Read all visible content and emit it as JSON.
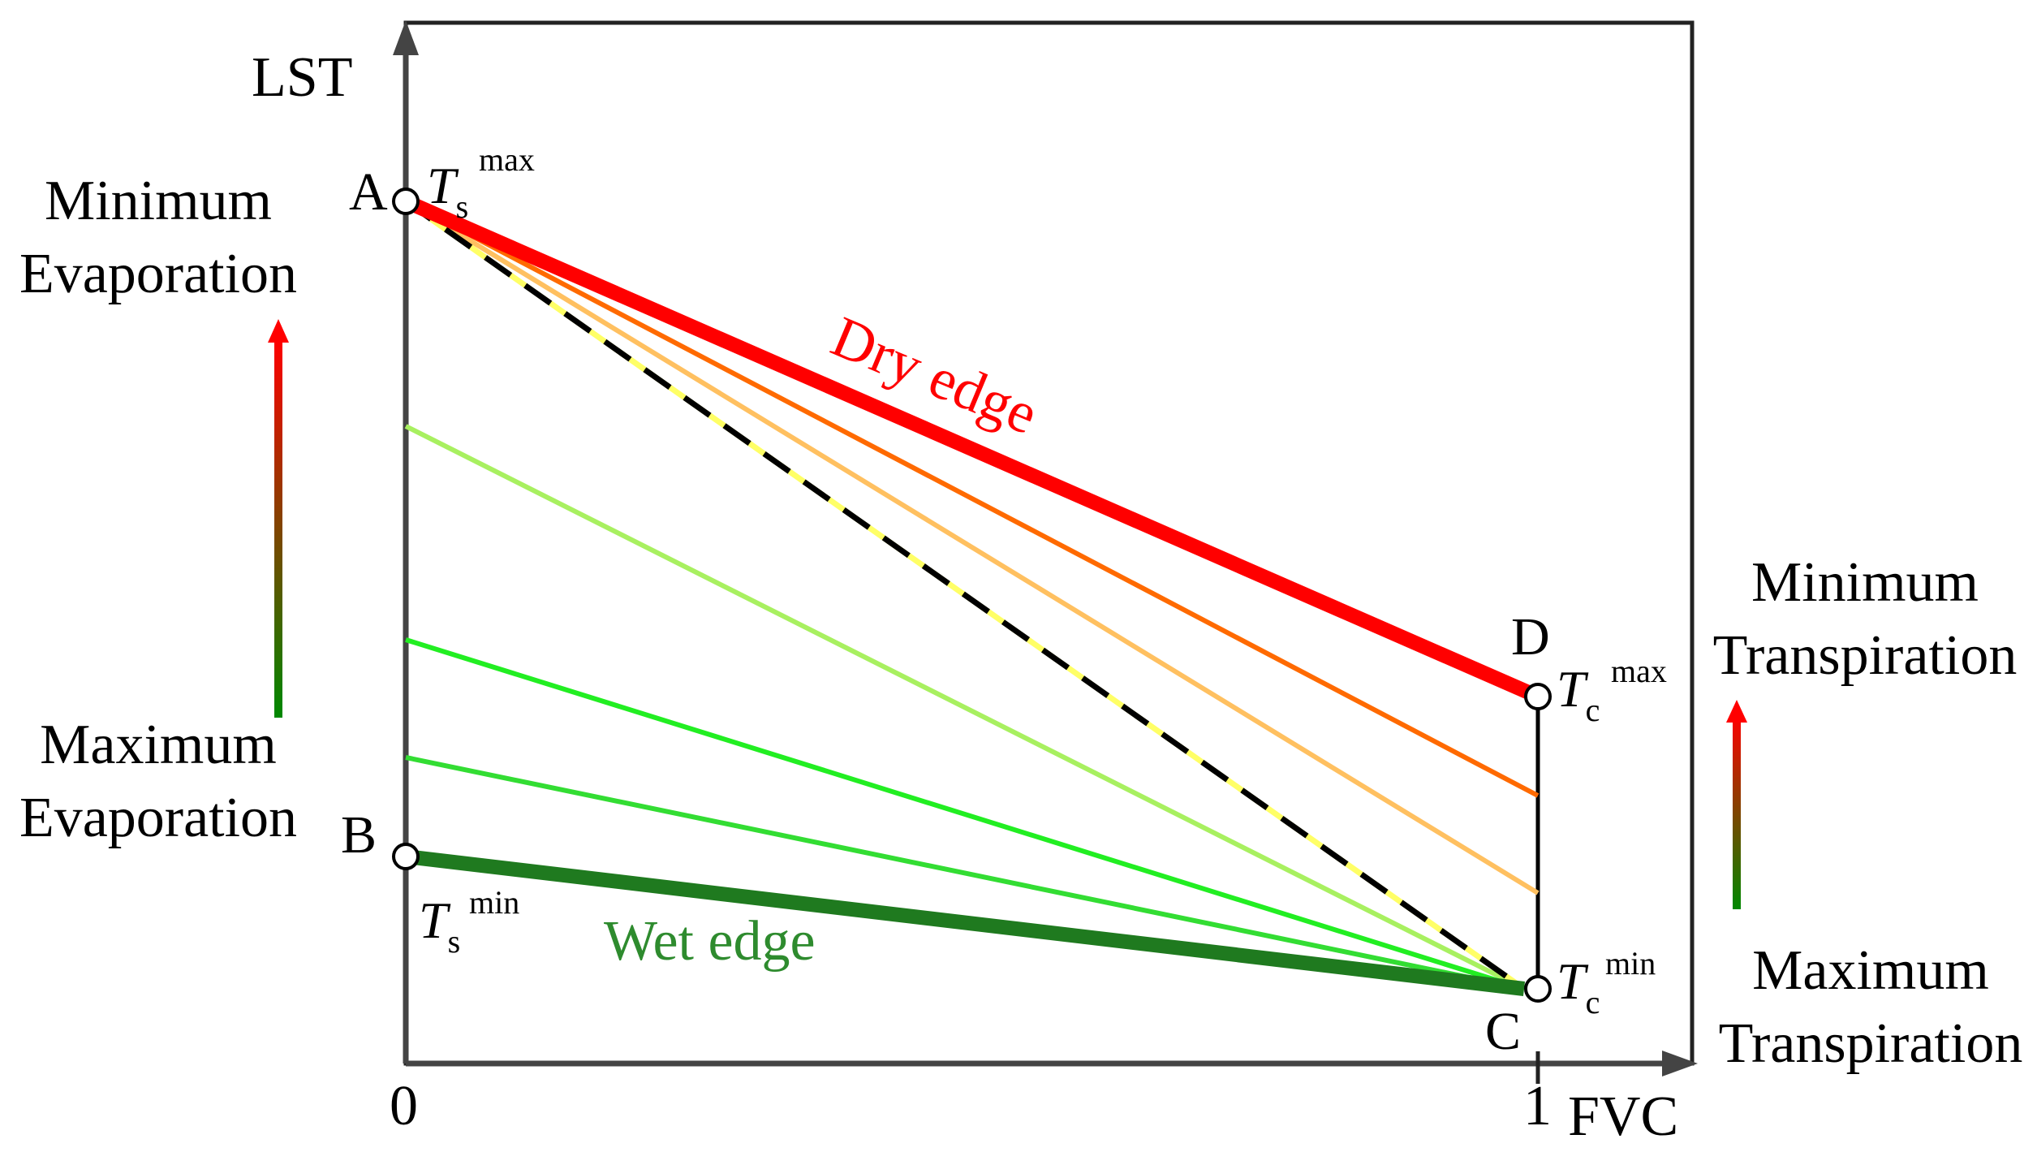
{
  "axes": {
    "y_label": "LST",
    "x_label": "FVC",
    "x_tick_0": "0",
    "x_tick_1": "1"
  },
  "points": {
    "A": {
      "label": "A",
      "symbol": "T",
      "sub": "s",
      "sup": "max"
    },
    "B": {
      "label": "B",
      "symbol": "T",
      "sub": "s",
      "sup": "min"
    },
    "C": {
      "label": "C",
      "symbol": "T",
      "sub": "c",
      "sup": "min"
    },
    "D": {
      "label": "D",
      "symbol": "T",
      "sub": "c",
      "sup": "max"
    }
  },
  "edges": {
    "dry": "Dry edge",
    "wet": "Wet edge"
  },
  "evaporation": {
    "top_line1": "Minimum",
    "top_line2": "Evaporation",
    "bottom_line1": "Maximum",
    "bottom_line2": "Evaporation"
  },
  "transpiration": {
    "top_line1": "Minimum",
    "top_line2": "Transpiration",
    "bottom_line1": "Maximum",
    "bottom_line2": "Transpiration"
  },
  "colors": {
    "dry_edge": "#ff0000",
    "wet_edge": "#1f7a1f",
    "dry_text": "#ff0000",
    "wet_text": "#2e8b2e",
    "iso_orange": "#ff6a00",
    "iso_light_orange": "#ffc060",
    "iso_yellow_green": "#a8f060",
    "iso_green": "#22ee22",
    "iso_green2": "#33dd33",
    "gradient_top": "#ff0000",
    "gradient_bottom": "#008800"
  }
}
